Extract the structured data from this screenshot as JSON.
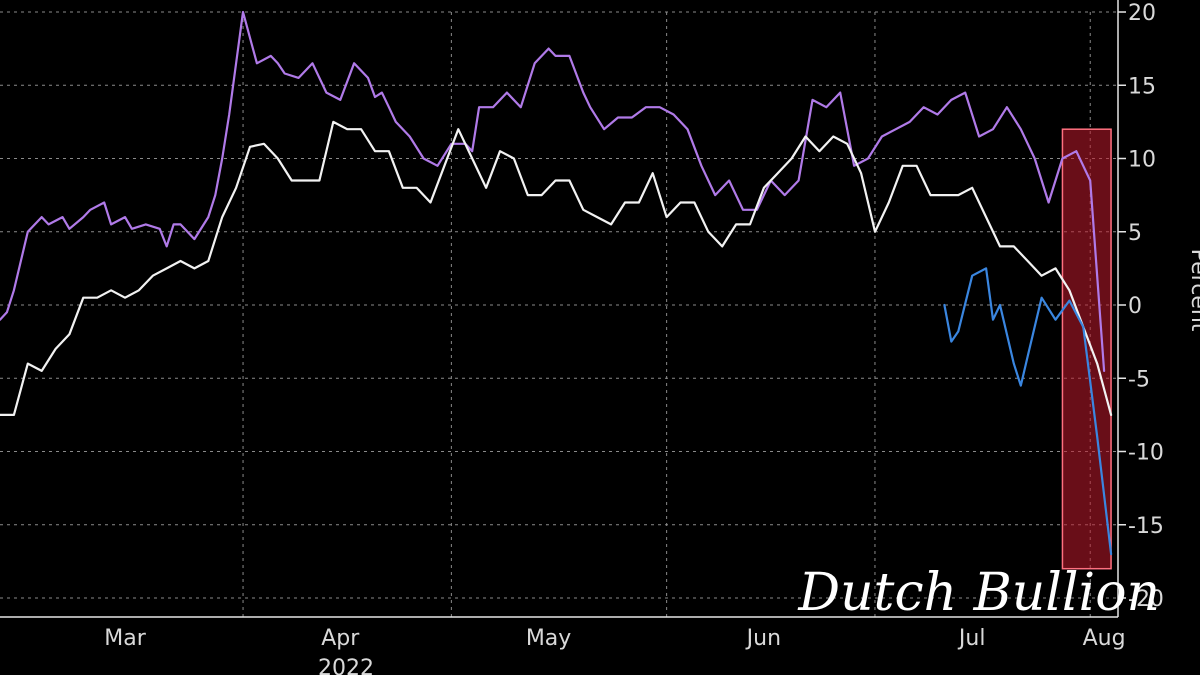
{
  "chart_data": {
    "type": "line",
    "title": "",
    "xlabel": "",
    "ylabel": "Percent",
    "year_label": "2022",
    "ylim": [
      -20,
      20
    ],
    "xlim": [
      "2022-02-25",
      "2022-08-05"
    ],
    "grid": true,
    "legend": "none",
    "x_ticks": [
      {
        "label": "Mar",
        "date": "2022-03-15"
      },
      {
        "label": "Apr",
        "date": "2022-04-15"
      },
      {
        "label": "May",
        "date": "2022-05-15"
      },
      {
        "label": "Jun",
        "date": "2022-06-15"
      },
      {
        "label": "Jul",
        "date": "2022-07-15"
      },
      {
        "label": "Aug",
        "date": "2022-08-03"
      }
    ],
    "x_gridlines": [
      "2022-04-01",
      "2022-05-01",
      "2022-06-01",
      "2022-07-01",
      "2022-08-01"
    ],
    "y_ticks": [
      20,
      15,
      10,
      5,
      0,
      -5,
      -10,
      -15,
      -20
    ],
    "highlight": {
      "x": [
        "2022-07-28",
        "2022-08-04"
      ],
      "y": [
        -18,
        12
      ],
      "color": "#c0192c"
    },
    "watermark": "Dutch Bullion",
    "series": [
      {
        "color": "#b07ae8",
        "x": [
          "2022-02-25",
          "2022-02-26",
          "2022-02-27",
          "2022-03-01",
          "2022-03-03",
          "2022-03-04",
          "2022-03-06",
          "2022-03-07",
          "2022-03-09",
          "2022-03-10",
          "2022-03-12",
          "2022-03-13",
          "2022-03-15",
          "2022-03-16",
          "2022-03-18",
          "2022-03-20",
          "2022-03-21",
          "2022-03-22",
          "2022-03-23",
          "2022-03-25",
          "2022-03-27",
          "2022-03-28",
          "2022-03-29",
          "2022-03-30",
          "2022-04-01",
          "2022-04-03",
          "2022-04-05",
          "2022-04-06",
          "2022-04-07",
          "2022-04-09",
          "2022-04-11",
          "2022-04-13",
          "2022-04-15",
          "2022-04-17",
          "2022-04-19",
          "2022-04-20",
          "2022-04-21",
          "2022-04-22",
          "2022-04-23",
          "2022-04-24",
          "2022-04-25",
          "2022-04-27",
          "2022-04-29",
          "2022-05-01",
          "2022-05-03",
          "2022-05-04",
          "2022-05-05",
          "2022-05-07",
          "2022-05-09",
          "2022-05-11",
          "2022-05-13",
          "2022-05-15",
          "2022-05-16",
          "2022-05-18",
          "2022-05-20",
          "2022-05-21",
          "2022-05-23",
          "2022-05-25",
          "2022-05-27",
          "2022-05-29",
          "2022-05-31",
          "2022-06-02",
          "2022-06-04",
          "2022-06-06",
          "2022-06-08",
          "2022-06-10",
          "2022-06-12",
          "2022-06-14",
          "2022-06-16",
          "2022-06-18",
          "2022-06-20",
          "2022-06-22",
          "2022-06-24",
          "2022-06-26",
          "2022-06-28",
          "2022-06-30",
          "2022-07-02",
          "2022-07-04",
          "2022-07-06",
          "2022-07-08",
          "2022-07-10",
          "2022-07-12",
          "2022-07-14",
          "2022-07-16",
          "2022-07-18",
          "2022-07-20",
          "2022-07-22",
          "2022-07-24",
          "2022-07-26",
          "2022-07-28",
          "2022-07-30",
          "2022-08-01",
          "2022-08-03"
        ],
        "values": [
          -1,
          -0.5,
          1,
          5,
          6,
          5.5,
          6,
          5.2,
          6,
          6.5,
          7,
          5.5,
          6,
          5.2,
          5.5,
          5.2,
          4,
          5.5,
          5.5,
          4.5,
          6,
          7.5,
          10,
          13,
          20,
          16.5,
          17,
          16.5,
          15.8,
          15.5,
          16.5,
          14.5,
          14,
          16.5,
          15.5,
          14.2,
          14.5,
          13.5,
          12.5,
          12,
          11.5,
          10,
          9.5,
          11,
          11,
          10.5,
          13.5,
          13.5,
          14.5,
          13.5,
          16.5,
          17.5,
          17,
          17,
          14.5,
          13.5,
          12,
          12.8,
          12.8,
          13.5,
          13.5,
          13,
          12,
          9.5,
          7.5,
          8.5,
          6.5,
          6.5,
          8.5,
          7.5,
          8.5,
          14,
          13.5,
          14.5,
          9.5,
          10,
          11.5,
          12,
          12.5,
          13.5,
          13,
          14,
          14.5,
          11.5,
          12,
          13.5,
          12,
          10,
          7,
          10,
          10.5,
          8.5,
          -4.5
        ]
      },
      {
        "color": "#f2f2f2",
        "x": [
          "2022-02-25",
          "2022-02-27",
          "2022-03-01",
          "2022-03-03",
          "2022-03-05",
          "2022-03-07",
          "2022-03-09",
          "2022-03-11",
          "2022-03-13",
          "2022-03-15",
          "2022-03-17",
          "2022-03-19",
          "2022-03-21",
          "2022-03-23",
          "2022-03-25",
          "2022-03-27",
          "2022-03-29",
          "2022-03-31",
          "2022-04-02",
          "2022-04-04",
          "2022-04-06",
          "2022-04-08",
          "2022-04-10",
          "2022-04-12",
          "2022-04-14",
          "2022-04-16",
          "2022-04-18",
          "2022-04-20",
          "2022-04-22",
          "2022-04-24",
          "2022-04-26",
          "2022-04-28",
          "2022-04-30",
          "2022-05-02",
          "2022-05-04",
          "2022-05-06",
          "2022-05-08",
          "2022-05-10",
          "2022-05-12",
          "2022-05-14",
          "2022-05-16",
          "2022-05-18",
          "2022-05-20",
          "2022-05-22",
          "2022-05-24",
          "2022-05-26",
          "2022-05-28",
          "2022-05-30",
          "2022-06-01",
          "2022-06-03",
          "2022-06-05",
          "2022-06-07",
          "2022-06-09",
          "2022-06-11",
          "2022-06-13",
          "2022-06-15",
          "2022-06-17",
          "2022-06-19",
          "2022-06-21",
          "2022-06-23",
          "2022-06-25",
          "2022-06-27",
          "2022-06-29",
          "2022-07-01",
          "2022-07-03",
          "2022-07-05",
          "2022-07-07",
          "2022-07-09",
          "2022-07-11",
          "2022-07-13",
          "2022-07-15",
          "2022-07-17",
          "2022-07-19",
          "2022-07-21",
          "2022-07-23",
          "2022-07-25",
          "2022-07-27",
          "2022-07-29",
          "2022-07-31",
          "2022-08-02",
          "2022-08-04"
        ],
        "values": [
          -7.5,
          -7.5,
          -4,
          -4.5,
          -3,
          -2,
          0.5,
          0.5,
          1,
          0.5,
          1,
          2,
          2.5,
          3,
          2.5,
          3,
          6,
          8,
          10.8,
          11,
          10,
          8.5,
          8.5,
          8.5,
          12.5,
          12,
          12,
          10.5,
          10.5,
          8,
          8,
          7,
          9.5,
          12,
          10,
          8,
          10.5,
          10,
          7.5,
          7.5,
          8.5,
          8.5,
          6.5,
          6,
          5.5,
          7,
          7,
          9,
          6,
          7,
          7,
          5,
          4,
          5.5,
          5.5,
          8,
          9,
          10,
          11.5,
          10.5,
          11.5,
          11,
          9,
          5,
          7,
          9.5,
          9.5,
          7.5,
          7.5,
          7.5,
          8,
          6,
          4,
          4,
          3,
          2,
          2.5,
          1,
          -1.5,
          -4,
          -7.5
        ]
      },
      {
        "color": "#3a86e0",
        "x": [
          "2022-07-11",
          "2022-07-12",
          "2022-07-13",
          "2022-07-15",
          "2022-07-17",
          "2022-07-18",
          "2022-07-19",
          "2022-07-21",
          "2022-07-22",
          "2022-07-23",
          "2022-07-25",
          "2022-07-27",
          "2022-07-29",
          "2022-07-31",
          "2022-08-02",
          "2022-08-04"
        ],
        "values": [
          0,
          -2.5,
          -1.8,
          2,
          2.5,
          -1,
          0,
          -4,
          -5.5,
          -3.5,
          0.5,
          -1,
          0.3,
          -1.5,
          -9,
          -17
        ]
      }
    ]
  }
}
